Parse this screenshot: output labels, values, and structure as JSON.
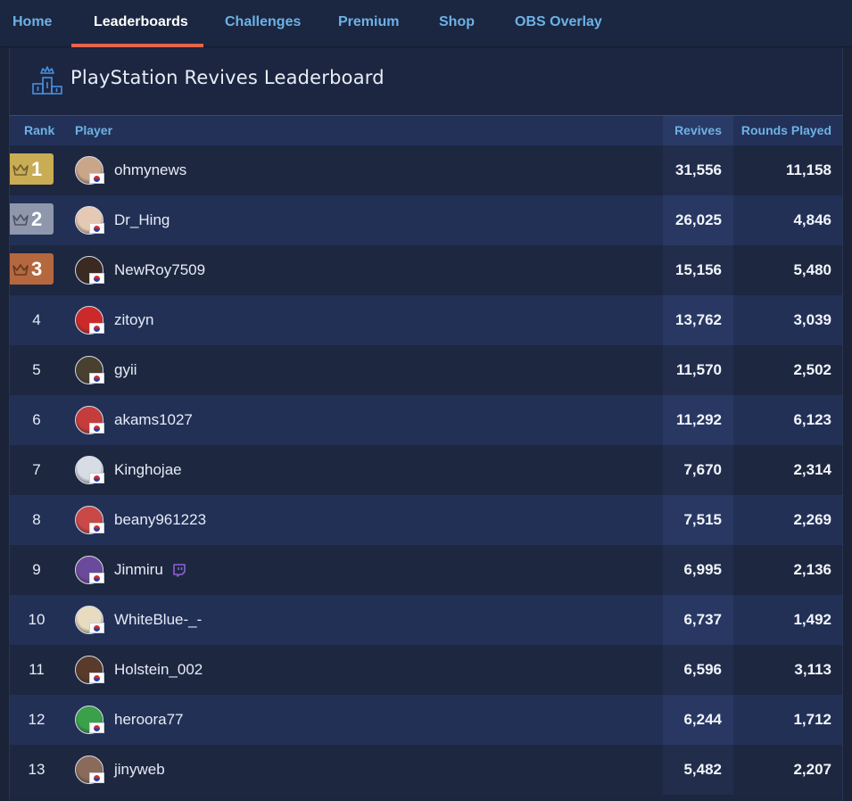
{
  "nav": {
    "items": [
      {
        "label": "Home",
        "active": false
      },
      {
        "label": "Leaderboards",
        "active": true
      },
      {
        "label": "Challenges",
        "active": false
      },
      {
        "label": "Premium",
        "active": false
      },
      {
        "label": "Shop",
        "active": false
      },
      {
        "label": "OBS Overlay",
        "active": false
      }
    ]
  },
  "leaderboard": {
    "title": "PlayStation Revives Leaderboard",
    "columns": {
      "rank": "Rank",
      "player": "Player",
      "revives": "Revives",
      "rounds": "Rounds Played"
    },
    "rows": [
      {
        "rank": "1",
        "player": "ohmynews",
        "revives": "31,556",
        "rounds": "11,158",
        "avatar_color": "#c9a58a"
      },
      {
        "rank": "2",
        "player": "Dr_Hing",
        "revives": "26,025",
        "rounds": "4,846",
        "avatar_color": "#e6c9b4"
      },
      {
        "rank": "3",
        "player": "NewRoy7509",
        "revives": "15,156",
        "rounds": "5,480",
        "avatar_color": "#3a2a22"
      },
      {
        "rank": "4",
        "player": "zitoyn",
        "revives": "13,762",
        "rounds": "3,039",
        "avatar_color": "#cc2a2a"
      },
      {
        "rank": "5",
        "player": "gyii",
        "revives": "11,570",
        "rounds": "2,502",
        "avatar_color": "#4a4030"
      },
      {
        "rank": "6",
        "player": "akams1027",
        "revives": "11,292",
        "rounds": "6,123",
        "avatar_color": "#c43c3c"
      },
      {
        "rank": "7",
        "player": "Kinghojae",
        "revives": "7,670",
        "rounds": "2,314",
        "avatar_color": "#d8dce4"
      },
      {
        "rank": "8",
        "player": "beany961223",
        "revives": "7,515",
        "rounds": "2,269",
        "avatar_color": "#c94848"
      },
      {
        "rank": "9",
        "player": "Jinmiru",
        "revives": "6,995",
        "rounds": "2,136",
        "avatar_color": "#6a4a9a",
        "twitch": true
      },
      {
        "rank": "10",
        "player": "WhiteBlue-_-",
        "revives": "6,737",
        "rounds": "1,492",
        "avatar_color": "#e8dcc0"
      },
      {
        "rank": "11",
        "player": "Holstein_002",
        "revives": "6,596",
        "rounds": "3,113",
        "avatar_color": "#5a3a2a"
      },
      {
        "rank": "12",
        "player": "heroora77",
        "revives": "6,244",
        "rounds": "1,712",
        "avatar_color": "#3aa04a"
      },
      {
        "rank": "13",
        "player": "jinyweb",
        "revives": "5,482",
        "rounds": "2,207",
        "avatar_color": "#8a6a5a"
      }
    ]
  },
  "medal_colors": {
    "1": "#c9ad55",
    "2": "#8f97ad",
    "3": "#b5683e"
  },
  "icons": {
    "title": "podium-crown-icon",
    "twitch": "twitch-icon",
    "flag": "south-korea-flag-icon"
  }
}
